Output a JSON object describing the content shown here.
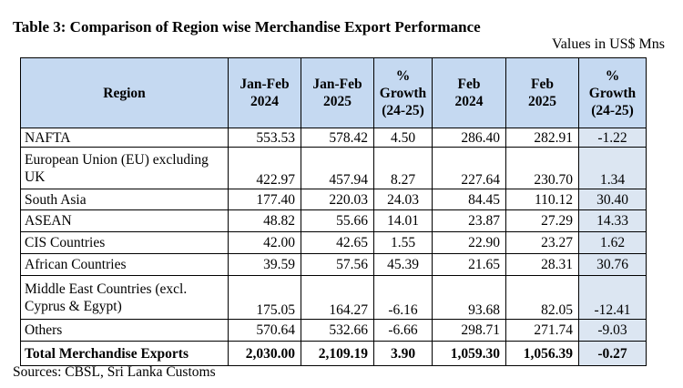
{
  "title": "Table 3: Comparison of Region wise Merchandise Export Performance",
  "units": "Values in US$ Mns",
  "headers": {
    "region": "Region",
    "janfeb24": [
      "Jan-Feb",
      "2024"
    ],
    "janfeb25": [
      "Jan-Feb",
      "2025"
    ],
    "growth1": [
      "%",
      "Growth",
      "(24-25)"
    ],
    "feb24": [
      "Feb",
      "2024"
    ],
    "feb25": [
      "Feb",
      "2025"
    ],
    "growth2": [
      "%",
      "Growth",
      "(24-25)"
    ]
  },
  "rows": [
    {
      "region": [
        "NAFTA"
      ],
      "jf24": "553.53",
      "jf25": "578.42",
      "g1": "4.50",
      "f24": "286.40",
      "f25": "282.91",
      "g2": "-1.22"
    },
    {
      "region": [
        "European Union (EU) excluding",
        "UK"
      ],
      "jf24": "422.97",
      "jf25": "457.94",
      "g1": "8.27",
      "f24": "227.64",
      "f25": "230.70",
      "g2": "1.34"
    },
    {
      "region": [
        "South Asia"
      ],
      "jf24": "177.40",
      "jf25": "220.03",
      "g1": "24.03",
      "f24": "84.45",
      "f25": "110.12",
      "g2": "30.40"
    },
    {
      "region": [
        "ASEAN"
      ],
      "jf24": "48.82",
      "jf25": "55.66",
      "g1": "14.01",
      "f24": "23.87",
      "f25": "27.29",
      "g2": "14.33"
    },
    {
      "region": [
        "CIS Countries"
      ],
      "jf24": "42.00",
      "jf25": "42.65",
      "g1": "1.55",
      "f24": "22.90",
      "f25": "23.27",
      "g2": "1.62"
    },
    {
      "region": [
        "African Countries"
      ],
      "jf24": "39.59",
      "jf25": "57.56",
      "g1": "45.39",
      "f24": "21.65",
      "f25": "28.31",
      "g2": "30.76"
    },
    {
      "region": [
        "Middle East Countries (excl.",
        "Cyprus & Egypt)"
      ],
      "jf24": "175.05",
      "jf25": "164.27",
      "g1": "-6.16",
      "f24": "93.68",
      "f25": "82.05",
      "g2": "-12.41"
    },
    {
      "region": [
        "Others"
      ],
      "jf24": "570.64",
      "jf25": "532.66",
      "g1": "-6.66",
      "f24": "298.71",
      "f25": "271.74",
      "g2": "-9.03"
    }
  ],
  "total": {
    "region": "Total Merchandise Exports",
    "jf24": "2,030.00",
    "jf25": "2,109.19",
    "g1": "3.90",
    "f24": "1,059.30",
    "f25": "1,056.39",
    "g2": "-0.27"
  },
  "sources": "Sources: CBSL, Sri Lanka Customs"
}
